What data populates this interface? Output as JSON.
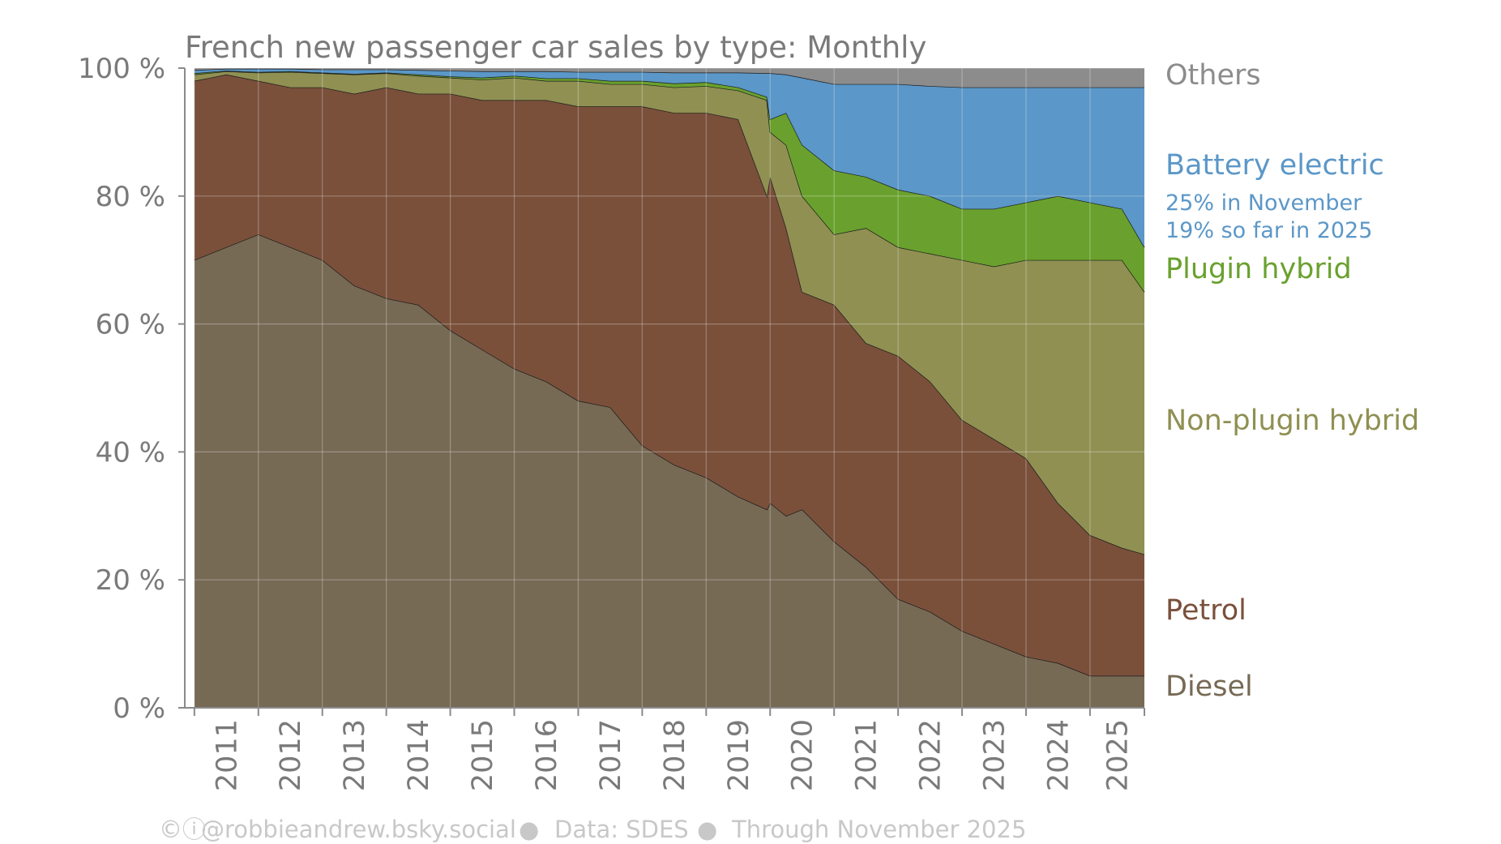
{
  "chart_data": {
    "type": "area",
    "stacked": true,
    "normalized": true,
    "title": "French new passenger car sales by type: Monthly",
    "y_ticks": [
      "0 %",
      "20 %",
      "40 %",
      "60 %",
      "80 %",
      "100 %"
    ],
    "ylim": [
      0,
      100
    ],
    "xlim": [
      2010.85,
      2025.85
    ],
    "x_ticks": [
      "2011",
      "2012",
      "2013",
      "2014",
      "2015",
      "2016",
      "2017",
      "2018",
      "2019",
      "2020",
      "2021",
      "2022",
      "2023",
      "2024",
      "2025"
    ],
    "grid": true,
    "legend_placement": "right, labels aligned to series",
    "x": [
      2011.0,
      2011.5,
      2012.0,
      2012.5,
      2013.0,
      2013.5,
      2014.0,
      2014.5,
      2015.0,
      2015.5,
      2016.0,
      2016.5,
      2017.0,
      2017.5,
      2018.0,
      2018.5,
      2019.0,
      2019.5,
      2019.95,
      2020.0,
      2020.25,
      2020.5,
      2021.0,
      2021.5,
      2022.0,
      2022.5,
      2023.0,
      2023.5,
      2024.0,
      2024.5,
      2025.0,
      2025.5,
      2025.85
    ],
    "cumulative_top_boundaries": [
      {
        "name": "Diesel",
        "color": "#776a55",
        "values": [
          70,
          72,
          74,
          72,
          70,
          66,
          64,
          63,
          59,
          56,
          53,
          51,
          48,
          47,
          41,
          38,
          36,
          33,
          31,
          32,
          30,
          31,
          26,
          22,
          17,
          15,
          12,
          10,
          8,
          7,
          5,
          5,
          5
        ]
      },
      {
        "name": "Petrol",
        "color": "#7a503b",
        "values": [
          98,
          99,
          98,
          97,
          97,
          96,
          97,
          96,
          96,
          95,
          95,
          95,
          94,
          94,
          94,
          93,
          93,
          92,
          80,
          83,
          75,
          65,
          63,
          57,
          55,
          51,
          45,
          42,
          39,
          32,
          27,
          25,
          24
        ]
      },
      {
        "name": "Non-plugin hybrid",
        "color": "#8f9052",
        "values": [
          99,
          99.5,
          99.3,
          99.4,
          99.2,
          99,
          99.2,
          98.8,
          98.5,
          98.2,
          98.5,
          98,
          98,
          97.5,
          97.5,
          97,
          97.2,
          96.5,
          95,
          90,
          88,
          80,
          74,
          75,
          72,
          71,
          70,
          69,
          70,
          70,
          70,
          70,
          65
        ]
      },
      {
        "name": "Plugin hybrid",
        "color": "#6aa12e",
        "values": [
          99.2,
          99.6,
          99.4,
          99.5,
          99.3,
          99.1,
          99.3,
          99,
          98.7,
          98.5,
          98.8,
          98.4,
          98.4,
          98,
          98,
          97.6,
          97.8,
          97,
          95.5,
          92,
          93,
          88,
          84,
          83,
          81,
          80,
          78,
          78,
          79,
          80,
          79,
          78,
          72
        ]
      },
      {
        "name": "Battery electric",
        "color": "#5b97c8",
        "values": [
          99.7,
          99.9,
          99.9,
          99.9,
          99.8,
          99.8,
          99.8,
          99.7,
          99.6,
          99.5,
          99.5,
          99.5,
          99.4,
          99.4,
          99.4,
          99.3,
          99.3,
          99.3,
          99.2,
          99.2,
          99,
          98.5,
          97.5,
          97.5,
          97.5,
          97.2,
          97,
          97,
          97,
          97,
          97,
          97,
          97
        ]
      },
      {
        "name": "Others",
        "color": "#8c8c8c",
        "values": [
          100,
          100,
          100,
          100,
          100,
          100,
          100,
          100,
          100,
          100,
          100,
          100,
          100,
          100,
          100,
          100,
          100,
          100,
          100,
          100,
          100,
          100,
          100,
          100,
          100,
          100,
          100,
          100,
          100,
          100,
          100,
          100,
          100
        ]
      }
    ],
    "series_labels": [
      {
        "name": "Others",
        "color": "#8c8c8c"
      },
      {
        "name": "Battery electric",
        "color": "#5b97c8",
        "notes": [
          "25% in November",
          "19% so far in 2025"
        ]
      },
      {
        "name": "Plugin hybrid",
        "color": "#6aa12e"
      },
      {
        "name": "Non-plugin hybrid",
        "color": "#8f9052"
      },
      {
        "name": "Petrol",
        "color": "#7a503b"
      },
      {
        "name": "Diesel",
        "color": "#776a55"
      }
    ]
  },
  "footer": {
    "license_icon": "cc-by-icon",
    "license_glyph": "©ⓘ",
    "credit": "@robbieandrew.bsky.social",
    "separator": "●",
    "source": "Data: SDES",
    "coverage": "Through November 2025"
  }
}
